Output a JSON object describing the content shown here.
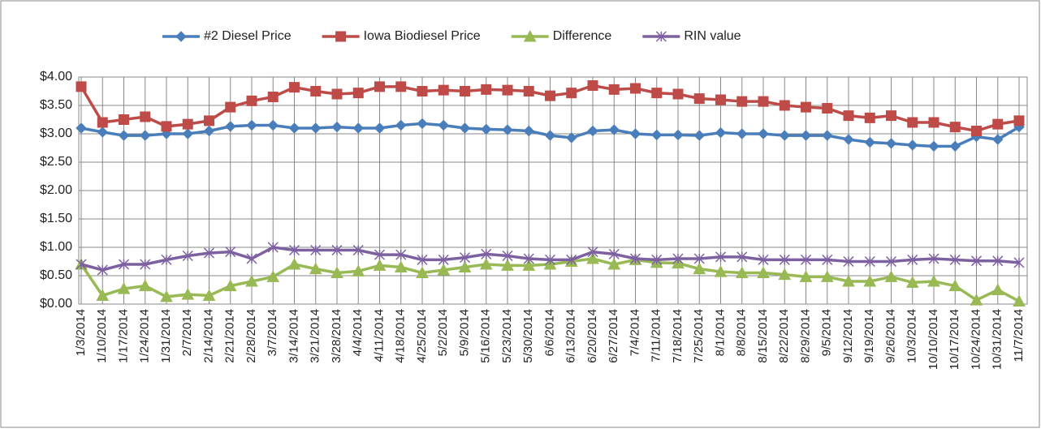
{
  "chart_data": {
    "type": "line",
    "categories": [
      "1/3/2014",
      "1/10/2014",
      "1/17/2014",
      "1/24/2014",
      "1/31/2014",
      "2/7/2014",
      "2/14/2014",
      "2/21/2014",
      "2/28/2014",
      "3/7/2014",
      "3/14/2014",
      "3/21/2014",
      "3/28/2014",
      "4/4/2014",
      "4/11/2014",
      "4/18/2014",
      "4/25/2014",
      "5/2/2014",
      "5/9/2014",
      "5/16/2014",
      "5/23/2014",
      "5/30/2014",
      "6/6/2014",
      "6/13/2014",
      "6/20/2014",
      "6/27/2014",
      "7/4/2014",
      "7/11/2014",
      "7/18/2014",
      "7/25/2014",
      "8/1/2014",
      "8/8/2014",
      "8/15/2014",
      "8/22/2014",
      "8/29/2014",
      "9/5/2014",
      "9/12/2014",
      "9/19/2014",
      "9/26/2014",
      "10/3/2014",
      "10/10/2014",
      "10/17/2014",
      "10/24/2014",
      "10/31/2014",
      "11/7/2014"
    ],
    "series": [
      {
        "name": "#2 Diesel Price",
        "color": "#4a7ebb",
        "marker": "diamond",
        "values": [
          3.1,
          3.03,
          2.97,
          2.97,
          3.0,
          3.0,
          3.05,
          3.13,
          3.15,
          3.15,
          3.1,
          3.1,
          3.12,
          3.1,
          3.1,
          3.15,
          3.18,
          3.15,
          3.1,
          3.08,
          3.07,
          3.05,
          2.97,
          2.93,
          3.05,
          3.07,
          3.0,
          2.98,
          2.98,
          2.97,
          3.02,
          3.0,
          3.0,
          2.97,
          2.97,
          2.97,
          2.9,
          2.85,
          2.83,
          2.8,
          2.78,
          2.78,
          2.95,
          2.9,
          3.12
        ]
      },
      {
        "name": "Iowa Biodiesel Price",
        "color": "#be4b48",
        "marker": "square",
        "values": [
          3.83,
          3.2,
          3.25,
          3.3,
          3.13,
          3.17,
          3.23,
          3.47,
          3.58,
          3.65,
          3.82,
          3.75,
          3.7,
          3.72,
          3.83,
          3.83,
          3.75,
          3.77,
          3.75,
          3.78,
          3.77,
          3.75,
          3.67,
          3.72,
          3.85,
          3.78,
          3.8,
          3.72,
          3.7,
          3.62,
          3.6,
          3.57,
          3.57,
          3.5,
          3.47,
          3.45,
          3.32,
          3.28,
          3.32,
          3.2,
          3.2,
          3.12,
          3.05,
          3.17,
          3.23
        ]
      },
      {
        "name": "Difference",
        "color": "#98b954",
        "marker": "triangle",
        "values": [
          0.7,
          0.15,
          0.27,
          0.32,
          0.13,
          0.17,
          0.15,
          0.32,
          0.4,
          0.48,
          0.7,
          0.62,
          0.55,
          0.58,
          0.68,
          0.65,
          0.55,
          0.6,
          0.65,
          0.7,
          0.68,
          0.68,
          0.7,
          0.75,
          0.8,
          0.7,
          0.78,
          0.73,
          0.72,
          0.62,
          0.57,
          0.55,
          0.55,
          0.52,
          0.48,
          0.48,
          0.4,
          0.4,
          0.48,
          0.38,
          0.4,
          0.32,
          0.07,
          0.25,
          0.05
        ]
      },
      {
        "name": "RIN value",
        "color": "#7d60a0",
        "marker": "star",
        "values": [
          0.7,
          0.6,
          0.7,
          0.7,
          0.78,
          0.85,
          0.9,
          0.92,
          0.8,
          1.0,
          0.95,
          0.95,
          0.95,
          0.95,
          0.87,
          0.87,
          0.78,
          0.78,
          0.82,
          0.88,
          0.85,
          0.8,
          0.78,
          0.78,
          0.92,
          0.88,
          0.8,
          0.78,
          0.8,
          0.8,
          0.83,
          0.83,
          0.78,
          0.78,
          0.78,
          0.78,
          0.75,
          0.75,
          0.75,
          0.78,
          0.8,
          0.78,
          0.76,
          0.76,
          0.73
        ]
      }
    ],
    "ylim": [
      0,
      4
    ],
    "yticks": [
      {
        "value": 0,
        "label": "$0.00"
      },
      {
        "value": 0.5,
        "label": "$0.50"
      },
      {
        "value": 1,
        "label": "$1.00"
      },
      {
        "value": 1.5,
        "label": "$1.50"
      },
      {
        "value": 2,
        "label": "$2.00"
      },
      {
        "value": 2.5,
        "label": "$2.50"
      },
      {
        "value": 3,
        "label": "$3.00"
      },
      {
        "value": 3.5,
        "label": "$3.50"
      },
      {
        "value": 4,
        "label": "$4.00"
      }
    ],
    "grid": true,
    "legend": "top"
  }
}
